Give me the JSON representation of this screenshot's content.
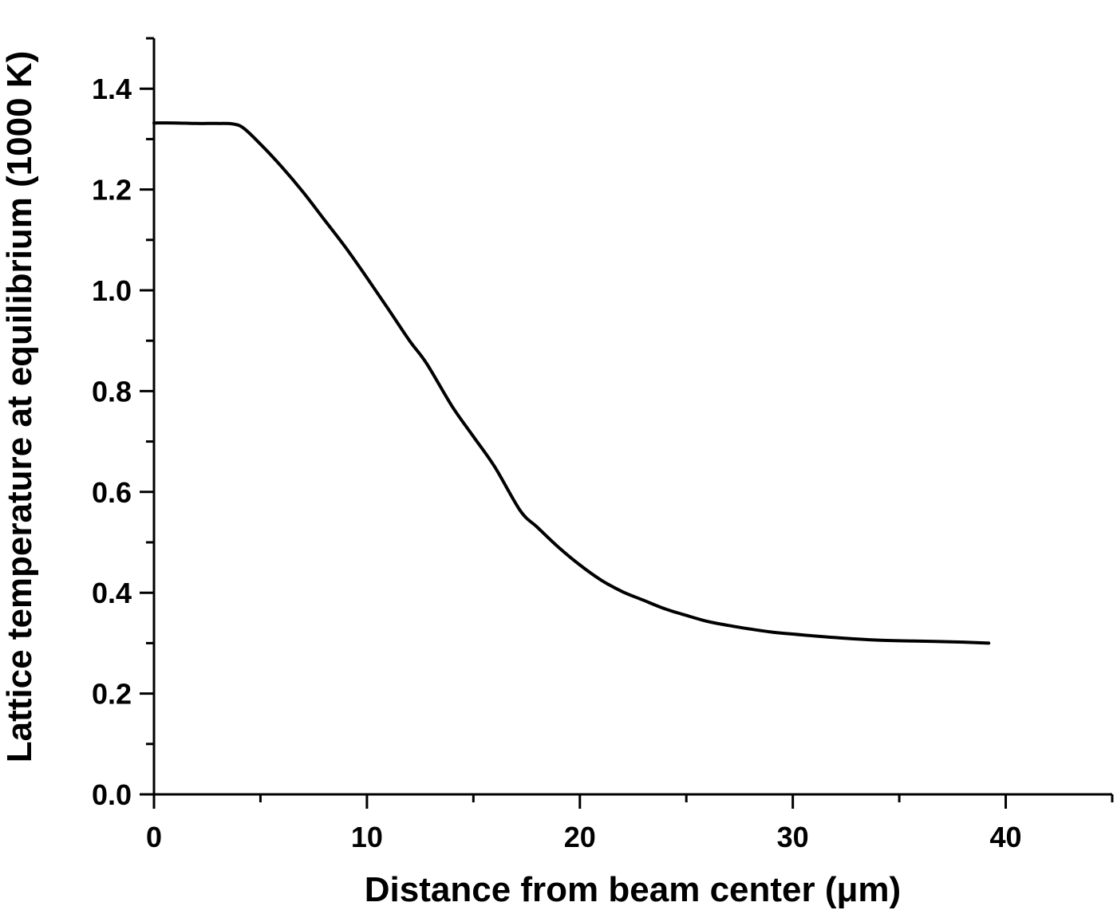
{
  "chart_data": {
    "type": "line",
    "title": "",
    "xlabel": "Distance from beam center (μm)",
    "ylabel": "Lattice temperature at equilibrium (1000 K)",
    "xlim": [
      0,
      45
    ],
    "ylim": [
      0,
      1.5
    ],
    "grid": false,
    "legend": null,
    "x_ticks": [
      0,
      10,
      20,
      30,
      40
    ],
    "x_tick_labels": [
      "0",
      "10",
      "20",
      "30",
      "40"
    ],
    "x_minor_ticks": [
      5,
      15,
      25,
      35,
      45
    ],
    "y_ticks": [
      0.0,
      0.2,
      0.4,
      0.6,
      0.8,
      1.0,
      1.2,
      1.4
    ],
    "y_tick_labels": [
      "0.0",
      "0.2",
      "0.4",
      "0.6",
      "0.8",
      "1.0",
      "1.2",
      "1.4"
    ],
    "y_minor_ticks": [
      0.1,
      0.3,
      0.5,
      0.7,
      0.9,
      1.1,
      1.3
    ],
    "series": [
      {
        "name": "Lattice temperature",
        "color": "#000000",
        "x": [
          0,
          1,
          2,
          3,
          3.7,
          4.2,
          5,
          6,
          7,
          8,
          9,
          10,
          11,
          12,
          12.8,
          14,
          15,
          16,
          17.2,
          18,
          19,
          20,
          21,
          22,
          23,
          24,
          25,
          26,
          27,
          28,
          29,
          30,
          32,
          34,
          36,
          38,
          39.2
        ],
        "y": [
          1.332,
          1.332,
          1.331,
          1.331,
          1.33,
          1.322,
          1.29,
          1.245,
          1.195,
          1.14,
          1.085,
          1.025,
          0.963,
          0.9,
          0.855,
          0.77,
          0.71,
          0.65,
          0.563,
          0.53,
          0.49,
          0.455,
          0.425,
          0.402,
          0.385,
          0.368,
          0.355,
          0.343,
          0.335,
          0.328,
          0.322,
          0.318,
          0.311,
          0.306,
          0.304,
          0.302,
          0.3
        ]
      }
    ]
  }
}
